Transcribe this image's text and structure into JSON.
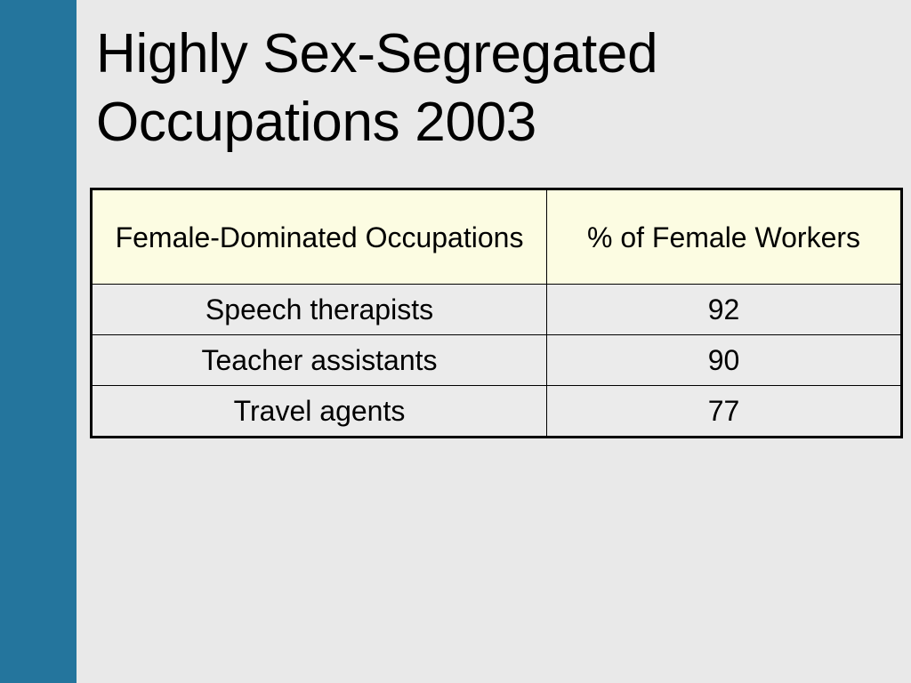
{
  "slide": {
    "title_line1": "Highly Sex-Segregated",
    "title_line2": "Occupations 2003"
  },
  "table": {
    "headers": [
      "Female-Dominated Occupations",
      "% of Female Workers"
    ],
    "rows": [
      [
        "Speech therapists",
        "92"
      ],
      [
        "Teacher assistants",
        "90"
      ],
      [
        "Travel agents",
        "77"
      ]
    ]
  },
  "colors": {
    "side_bar": "#24759d",
    "background": "#e9e9e9",
    "header_fill": "#fcfce2"
  }
}
